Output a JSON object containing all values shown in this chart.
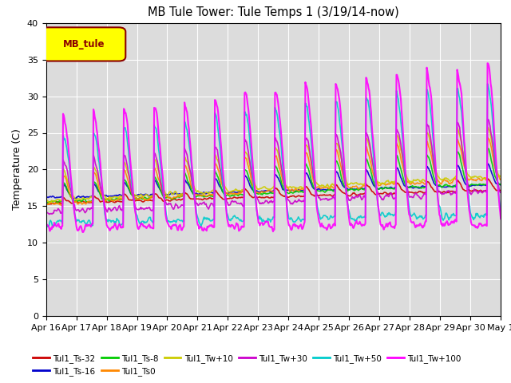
{
  "title": "MB Tule Tower: Tule Temps 1 (3/19/14-now)",
  "ylabel": "Temperature (C)",
  "ylim": [
    0,
    40
  ],
  "yticks": [
    0,
    5,
    10,
    15,
    20,
    25,
    30,
    35,
    40
  ],
  "bg_color": "#dcdcdc",
  "legend_box_label": "MB_tule",
  "legend_box_color": "#ffff00",
  "legend_box_edge": "#8b0000",
  "series": [
    {
      "label": "Tul1_Ts-32",
      "color": "#cc0000",
      "linewidth": 1.2
    },
    {
      "label": "Tul1_Ts-16",
      "color": "#0000cc",
      "linewidth": 1.2
    },
    {
      "label": "Tul1_Ts-8",
      "color": "#00cc00",
      "linewidth": 1.2
    },
    {
      "label": "Tul1_Ts0",
      "color": "#ff8800",
      "linewidth": 1.2
    },
    {
      "label": "Tul1_Tw+10",
      "color": "#cccc00",
      "linewidth": 1.2
    },
    {
      "label": "Tul1_Tw+30",
      "color": "#cc00cc",
      "linewidth": 1.2
    },
    {
      "label": "Tul1_Tw+50",
      "color": "#00cccc",
      "linewidth": 1.2
    },
    {
      "label": "Tul1_Tw+100",
      "color": "#ff00ff",
      "linewidth": 1.5
    }
  ],
  "xtick_labels": [
    "Apr 16",
    "Apr 17",
    "Apr 18",
    "Apr 19",
    "Apr 20",
    "Apr 21",
    "Apr 22",
    "Apr 23",
    "Apr 24",
    "Apr 25",
    "Apr 26",
    "Apr 27",
    "Apr 28",
    "Apr 29",
    "Apr 30",
    "May 1"
  ],
  "n_days": 15,
  "pts_per_day": 48
}
